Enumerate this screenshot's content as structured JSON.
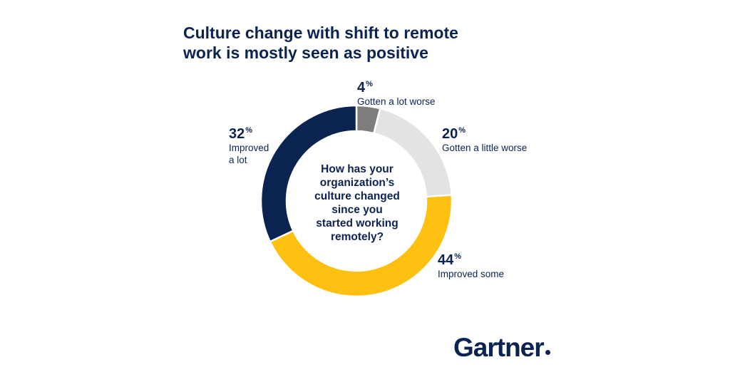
{
  "title_lines": [
    "Culture change with shift to remote",
    "work is mostly seen as positive"
  ],
  "center_question_lines": [
    "How has your",
    "organization’s",
    "culture changed",
    "since you",
    "started working",
    "remotely?"
  ],
  "logo": "Gartner",
  "colors": {
    "gotten_a_lot_worse": "#7d7d7d",
    "gotten_a_little_worse": "#e3e3e5",
    "improved_some": "#fdc010",
    "improved_a_lot": "#0b2350",
    "text": "#0b2350"
  },
  "chart_data": {
    "type": "pie",
    "donut": true,
    "title": "Culture change with shift to remote work is mostly seen as positive",
    "slices": [
      {
        "label": "Gotten a lot worse",
        "value": 4,
        "display": "4",
        "unit": "%",
        "name_lines": [
          "Gotten a lot worse"
        ]
      },
      {
        "label": "Gotten a little worse",
        "value": 20,
        "display": "20",
        "unit": "%",
        "name_lines": [
          "Gotten a little worse"
        ]
      },
      {
        "label": "Improved some",
        "value": 44,
        "display": "44",
        "unit": "%",
        "name_lines": [
          "Improved some"
        ]
      },
      {
        "label": "Improved a lot",
        "value": 32,
        "display": "32",
        "unit": "%",
        "name_lines": [
          "Improved",
          "a lot"
        ]
      }
    ]
  }
}
